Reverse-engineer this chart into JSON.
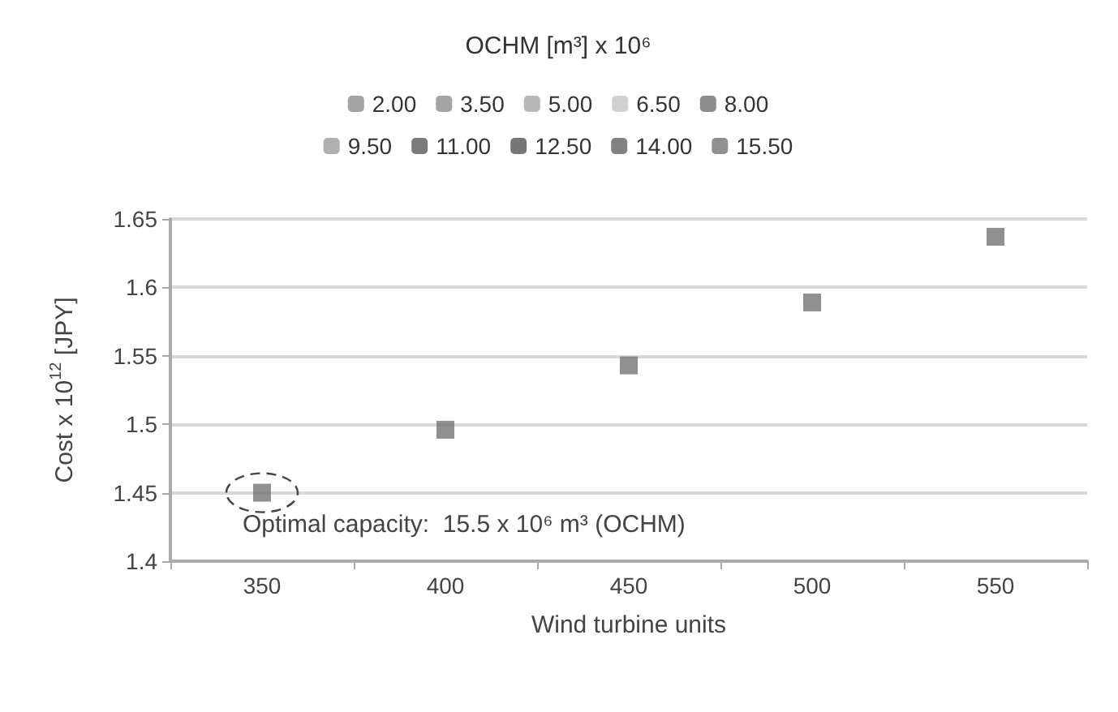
{
  "chart_data": {
    "type": "scatter",
    "legend_title": "OCHM [m³] x 10⁶",
    "xlabel": "Wind turbine units",
    "ylabel": "Cost x 10$^{12}$ [JPY]",
    "categories": [
      "350",
      "400",
      "450",
      "500",
      "550"
    ],
    "series": [
      {
        "name": "2.00",
        "color": "#8c8c8c",
        "values": [
          null,
          null,
          null,
          null,
          null
        ]
      },
      {
        "name": "3.50",
        "color": "#8f8f8f",
        "values": [
          null,
          null,
          null,
          null,
          null
        ]
      },
      {
        "name": "5.00",
        "color": "#a6a6a6",
        "values": [
          null,
          null,
          null,
          null,
          null
        ]
      },
      {
        "name": "6.50",
        "color": "#c4c4c4",
        "values": [
          null,
          null,
          null,
          null,
          null
        ]
      },
      {
        "name": "8.00",
        "color": "#707070",
        "values": [
          null,
          null,
          null,
          null,
          null
        ]
      },
      {
        "name": "9.50",
        "color": "#9c9c9c",
        "values": [
          null,
          null,
          null,
          null,
          null
        ]
      },
      {
        "name": "11.00",
        "color": "#5a5a5a",
        "values": [
          null,
          null,
          null,
          null,
          null
        ]
      },
      {
        "name": "12.50",
        "color": "#555555",
        "values": [
          null,
          null,
          null,
          null,
          null
        ]
      },
      {
        "name": "14.00",
        "color": "#636363",
        "values": [
          null,
          null,
          null,
          null,
          null
        ]
      },
      {
        "name": "15.50",
        "color": "#747474",
        "values": [
          1.45,
          1.496,
          1.543,
          1.589,
          1.637
        ]
      }
    ],
    "ylim": [
      1.4,
      1.65
    ],
    "yticks": [
      1.4,
      1.45,
      1.5,
      1.55,
      1.6,
      1.65
    ],
    "annotations": [
      {
        "text": "Optimal capacity:  15.5 x 10⁶ m³ (OCHM)",
        "x": "350",
        "y": 1.45
      }
    ],
    "grid": "y",
    "legend": "top",
    "marker": "square"
  }
}
